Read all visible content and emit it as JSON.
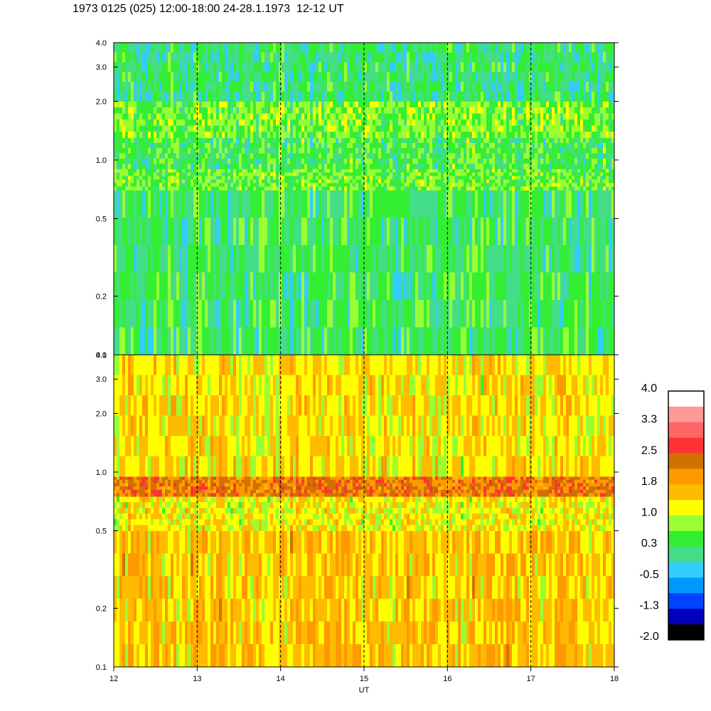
{
  "title": "1973 0125 (025) 12:00-18:00 24-28.1.1973  12-12 UT",
  "chart_data": {
    "type": "heatmap",
    "panels": [
      {
        "name": "",
        "y_scale": "log",
        "ylim": [
          0.1,
          4.0
        ],
        "ytick_labels": [
          "0.1",
          "0.2",
          "0.5",
          "1.0",
          "2.0",
          "3.0",
          "4.0"
        ],
        "ytick_values": [
          0.1,
          0.2,
          0.5,
          1.0,
          2.0,
          3.0,
          4.0
        ],
        "dominant_level_range": [
          -0.5,
          1.0
        ],
        "bands": [
          {
            "from": 0.1,
            "to": 0.7,
            "level": 0.3
          },
          {
            "from": 0.7,
            "to": 0.9,
            "level": 0.6
          },
          {
            "from": 0.9,
            "to": 1.3,
            "level": 0.4
          },
          {
            "from": 1.3,
            "to": 2.0,
            "level": 0.7
          },
          {
            "from": 2.0,
            "to": 4.0,
            "level": 0.2
          }
        ]
      },
      {
        "name": "",
        "y_scale": "log",
        "ylim": [
          0.1,
          4.0
        ],
        "ytick_labels": [
          "0.1",
          "0.2",
          "0.5",
          "1.0",
          "2.0",
          "3.0",
          "4.0"
        ],
        "ytick_values": [
          0.1,
          0.2,
          0.5,
          1.0,
          2.0,
          3.0,
          4.0
        ],
        "dominant_level_range": [
          0.6,
          2.2
        ],
        "bands": [
          {
            "from": 0.1,
            "to": 0.5,
            "level": 1.5
          },
          {
            "from": 0.5,
            "to": 0.75,
            "level": 1.2
          },
          {
            "from": 0.75,
            "to": 0.95,
            "level": 2.2
          },
          {
            "from": 0.95,
            "to": 4.0,
            "level": 1.3
          }
        ]
      }
    ],
    "x": {
      "label": "UT",
      "range": [
        12,
        18
      ],
      "ticks": [
        12,
        13,
        14,
        15,
        16,
        17,
        18
      ],
      "tick_labels": [
        "12",
        "13",
        "14",
        "15",
        "16",
        "17",
        "18"
      ],
      "dashed_gridlines_at": [
        13,
        14,
        15,
        16,
        17
      ]
    },
    "colorbar": {
      "labels": [
        "4.0",
        "3.3",
        "2.5",
        "1.8",
        "1.0",
        "0.3",
        "-0.5",
        "-1.3",
        "-2.0"
      ],
      "colors": [
        "#ffffff",
        "#ff9999",
        "#ff6666",
        "#ff3333",
        "#d27000",
        "#ff9900",
        "#ffbb00",
        "#ffff00",
        "#99ff33",
        "#33ee33",
        "#44dd88",
        "#33ccff",
        "#0099ff",
        "#0044ff",
        "#0000bb",
        "#000000"
      ]
    }
  }
}
